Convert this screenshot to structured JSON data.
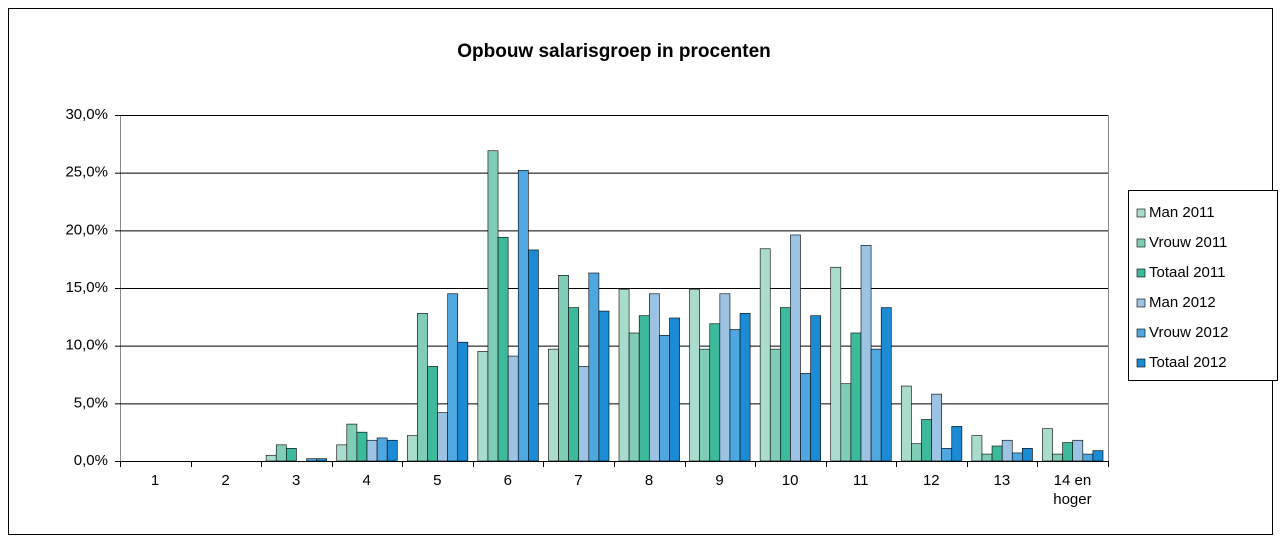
{
  "chart_data": {
    "type": "bar",
    "title": "Opbouw salarisgroep in procenten",
    "categories": [
      "1",
      "2",
      "3",
      "4",
      "5",
      "6",
      "7",
      "8",
      "9",
      "10",
      "11",
      "12",
      "13",
      "14 en hoger"
    ],
    "series": [
      {
        "name": "Man 2011",
        "color": "#a9dccd",
        "values": [
          0,
          0,
          0.5,
          1.4,
          2.2,
          9.5,
          9.7,
          14.9,
          14.9,
          18.4,
          16.8,
          6.5,
          2.2,
          2.8
        ]
      },
      {
        "name": "Vrouw 2011",
        "color": "#7fcdb6",
        "values": [
          0,
          0,
          1.4,
          3.2,
          12.8,
          26.9,
          16.1,
          11.1,
          9.7,
          9.7,
          6.7,
          1.5,
          0.6,
          0.6
        ]
      },
      {
        "name": "Totaal 2011",
        "color": "#3db99b",
        "values": [
          0,
          0,
          1.1,
          2.5,
          8.2,
          19.4,
          13.3,
          12.6,
          11.9,
          13.3,
          11.1,
          3.6,
          1.3,
          1.6
        ]
      },
      {
        "name": "Man 2012",
        "color": "#9cc2e4",
        "values": [
          0,
          0,
          0,
          1.8,
          4.2,
          9.1,
          8.2,
          14.5,
          14.5,
          19.6,
          18.7,
          5.8,
          1.8,
          1.8
        ]
      },
      {
        "name": "Vrouw 2012",
        "color": "#4fa7e0",
        "values": [
          0,
          0,
          0.2,
          2.0,
          14.5,
          25.2,
          16.3,
          10.9,
          11.4,
          7.6,
          9.7,
          1.1,
          0.7,
          0.6
        ]
      },
      {
        "name": "Totaal 2012",
        "color": "#1a8bd4",
        "values": [
          0,
          0,
          0.2,
          1.8,
          10.3,
          18.3,
          13.0,
          12.4,
          12.8,
          12.6,
          13.3,
          3.0,
          1.1,
          0.9
        ]
      }
    ],
    "ylim": [
      0,
      30
    ],
    "yticks": [
      {
        "value": 0,
        "label": "0,0%"
      },
      {
        "value": 5,
        "label": "5,0%"
      },
      {
        "value": 10,
        "label": "10,0%"
      },
      {
        "value": 15,
        "label": "15,0%"
      },
      {
        "value": 20,
        "label": "20,0%"
      },
      {
        "value": 25,
        "label": "25,0%"
      },
      {
        "value": 30,
        "label": "30,0%"
      }
    ],
    "grid": true,
    "legend": "right"
  }
}
